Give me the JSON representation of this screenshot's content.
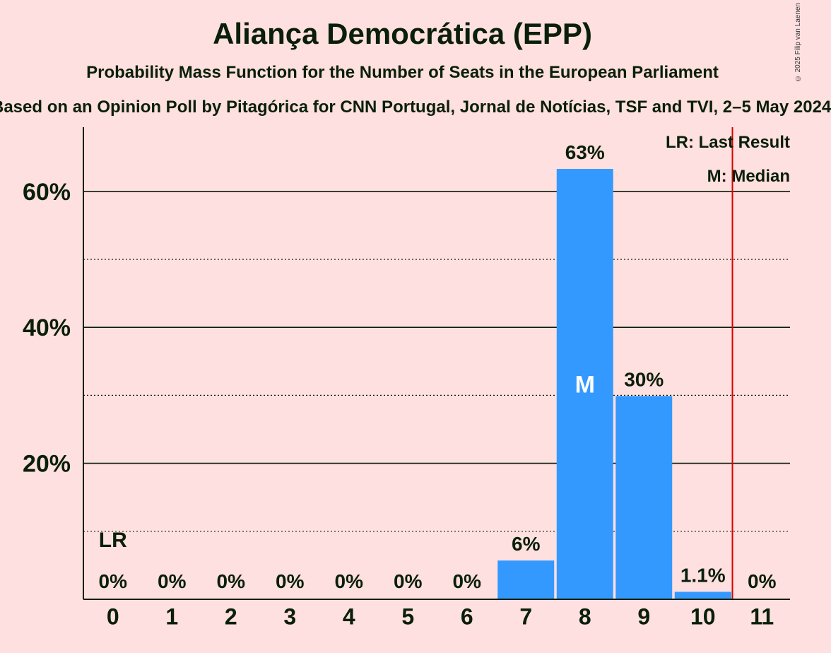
{
  "header": {
    "title": "Aliança Democrática (EPP)",
    "subtitle": "Probability Mass Function for the Number of Seats in the European Parliament",
    "source": "Based on an Opinion Poll by Pitagórica for CNN Portugal, Jornal de Notícias, TSF and TVI, 2–5 May 2024",
    "copyright": "© 2025 Filip van Laenen"
  },
  "legend": {
    "last_result": "LR: Last Result",
    "median": "M: Median"
  },
  "colors": {
    "background": "#FFE0E0",
    "bar": "#3399FF",
    "last_result_line": "#DD0000",
    "text": "#0A1F0A"
  },
  "chart_data": {
    "type": "bar",
    "title": "Aliança Democrática (EPP)",
    "categories": [
      "0",
      "1",
      "2",
      "3",
      "4",
      "5",
      "6",
      "7",
      "8",
      "9",
      "10",
      "11"
    ],
    "values": [
      0,
      0,
      0,
      0,
      0,
      0,
      0,
      5.7,
      63.3,
      29.9,
      1.1,
      0
    ],
    "value_labels": [
      "0%",
      "0%",
      "0%",
      "0%",
      "0%",
      "0%",
      "0%",
      "6%",
      "63%",
      "30%",
      "1.1%",
      "0%"
    ],
    "ylim": [
      0,
      69
    ],
    "y_ticks": [
      20,
      40,
      60
    ],
    "y_tick_labels": [
      "20%",
      "40%",
      "60%"
    ],
    "minor_gridlines": [
      10,
      30,
      50
    ],
    "median_seat": "8",
    "median_label": "M",
    "last_result_seat": "0",
    "last_result_label": "LR",
    "majority_line_after_seat": 10.5,
    "legend_position": "top-right"
  }
}
